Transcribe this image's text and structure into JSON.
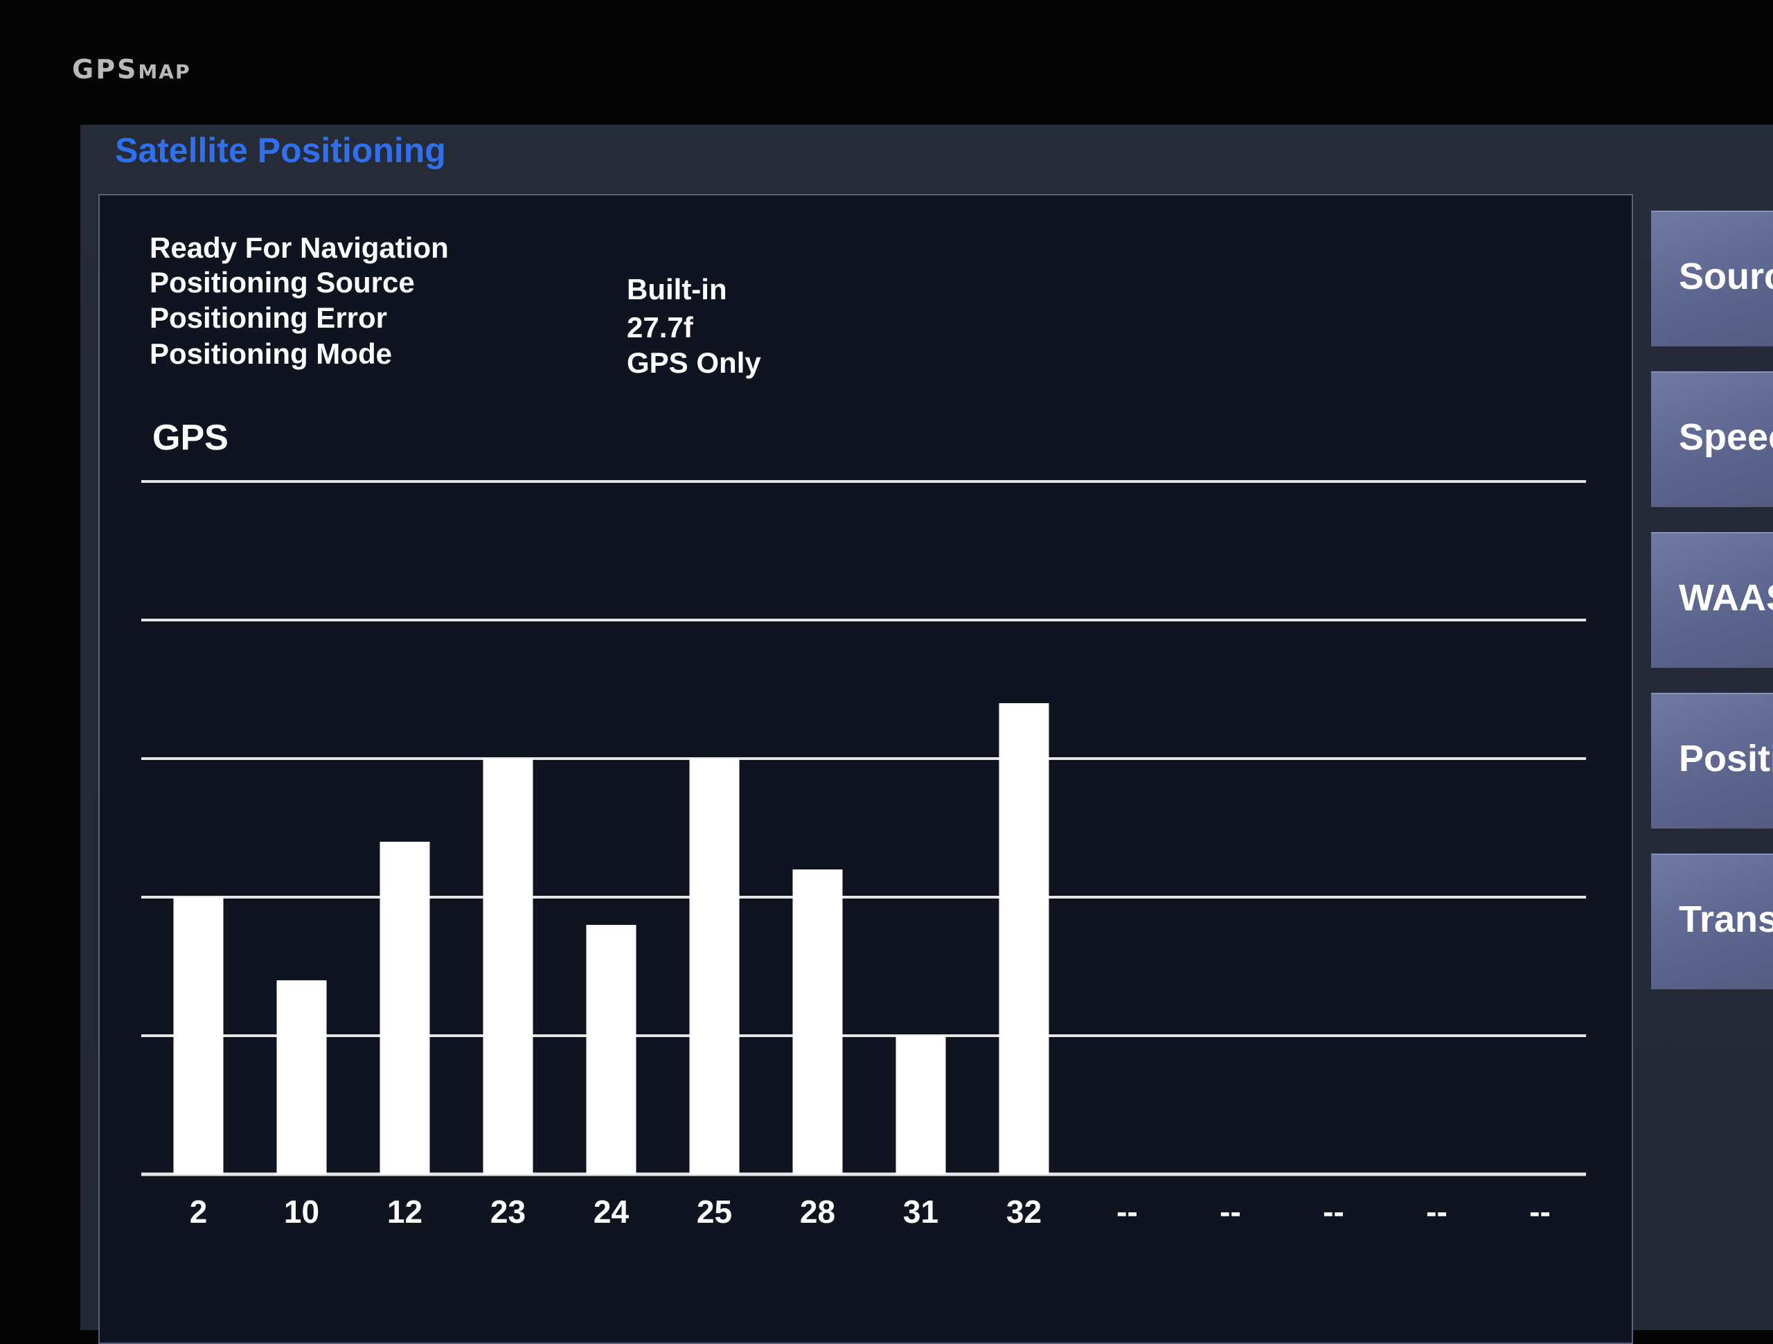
{
  "brand": {
    "main": "GPS",
    "small": "MAP"
  },
  "screen_title": "Satellite Positioning",
  "info": {
    "labels": [
      "Ready For Navigation",
      "Positioning Source",
      "Positioning Error",
      "Positioning Mode"
    ],
    "values": {
      "source": "Built-in",
      "error": "27.7f",
      "mode": "GPS Only"
    }
  },
  "chart_section_label": "GPS",
  "side_buttons": [
    "Sourc",
    "Speec",
    "WAAS",
    "Positi",
    "Trans"
  ],
  "colors": {
    "title": "#2f6ff0",
    "bars": "#ffffff",
    "panel": "#101320",
    "button": "#6f79a3"
  },
  "chart_data": {
    "type": "bar",
    "title": "GPS",
    "categories": [
      "2",
      "10",
      "12",
      "23",
      "24",
      "25",
      "28",
      "31",
      "32",
      "--",
      "--",
      "--",
      "--",
      "--"
    ],
    "values": [
      40,
      28,
      48,
      60,
      36,
      60,
      44,
      20,
      68,
      null,
      null,
      null,
      null,
      null
    ],
    "ylim": [
      0,
      100
    ],
    "gridlines": [
      0,
      20,
      40,
      60,
      80,
      100
    ],
    "grid": true
  }
}
